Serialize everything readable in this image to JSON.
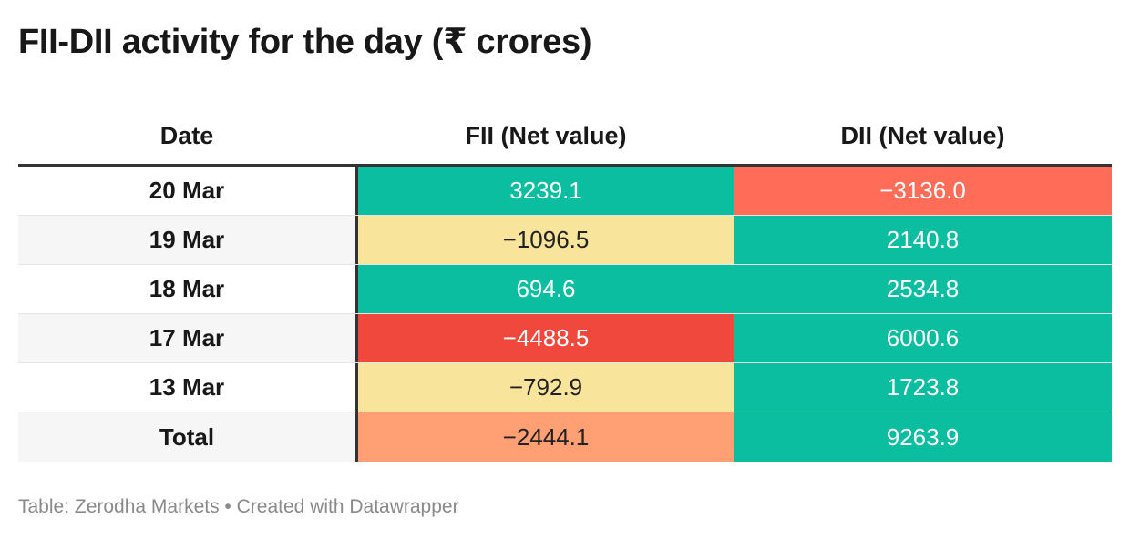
{
  "title": "FII-DII activity for the day (₹ crores)",
  "footer": "Table: Zerodha Markets • Created with Datawrapper",
  "colors": {
    "teal": "#0BBEA0",
    "red_light": "#FF6D58",
    "red_dark": "#F0483D",
    "yellow": "#F9E49C",
    "orange": "#FF9F73"
  },
  "chart_data": {
    "type": "table",
    "title": "FII-DII activity for the day (₹ crores)",
    "columns": [
      "Date",
      "FII (Net value)",
      "DII (Net value)"
    ],
    "rows": [
      {
        "date": "20 Mar",
        "fii": "3239.1",
        "dii": "−3136.0",
        "fii_color": "teal",
        "dii_color": "red_light",
        "fii_text": "light",
        "dii_text": "light"
      },
      {
        "date": "19 Mar",
        "fii": "−1096.5",
        "dii": "2140.8",
        "fii_color": "yellow",
        "dii_color": "teal",
        "fii_text": "dark",
        "dii_text": "light"
      },
      {
        "date": "18 Mar",
        "fii": "694.6",
        "dii": "2534.8",
        "fii_color": "teal",
        "dii_color": "teal",
        "fii_text": "light",
        "dii_text": "light"
      },
      {
        "date": "17 Mar",
        "fii": "−4488.5",
        "dii": "6000.6",
        "fii_color": "red_dark",
        "dii_color": "teal",
        "fii_text": "light",
        "dii_text": "light"
      },
      {
        "date": "13 Mar",
        "fii": "−792.9",
        "dii": "1723.8",
        "fii_color": "yellow",
        "dii_color": "teal",
        "fii_text": "dark",
        "dii_text": "light"
      },
      {
        "date": "Total",
        "fii": "−2444.1",
        "dii": "9263.9",
        "fii_color": "orange",
        "dii_color": "teal",
        "fii_text": "dark",
        "dii_text": "light"
      }
    ]
  }
}
